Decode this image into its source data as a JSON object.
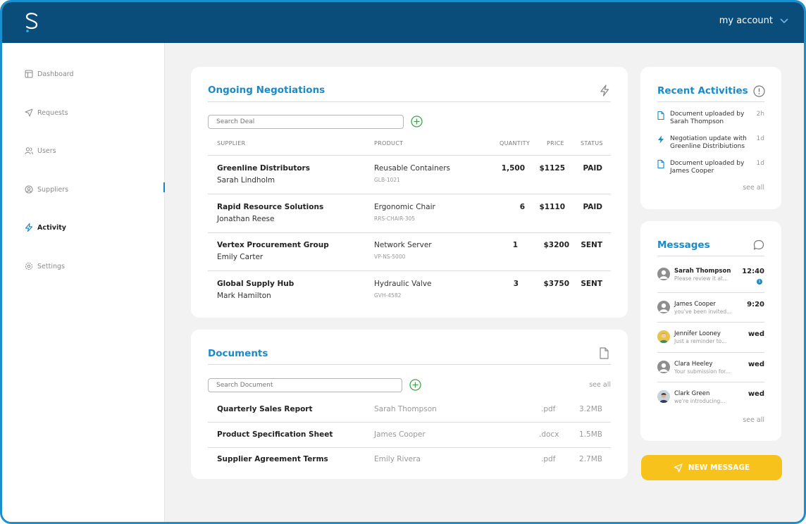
{
  "header": {
    "account_label": "my account"
  },
  "sidebar": {
    "items": [
      {
        "label": "Dashboard",
        "icon": "dashboard-icon"
      },
      {
        "label": "Requests",
        "icon": "send-icon"
      },
      {
        "label": "Users",
        "icon": "users-icon"
      },
      {
        "label": "Suppliers",
        "icon": "suppliers-icon"
      },
      {
        "label": "Activity",
        "icon": "lightning-icon"
      },
      {
        "label": "Settings",
        "icon": "gear-icon"
      }
    ],
    "active": "Activity"
  },
  "negotiations": {
    "title": "Ongoing Negotiations",
    "search_placeholder": "Search Deal",
    "columns": {
      "supplier": "SUPPLIER",
      "product": "PRODUCT",
      "quantity": "QUANTITY",
      "price": "PRICE",
      "status": "STATUS"
    },
    "rows": [
      {
        "supplier": "Greenline Distributors",
        "contact": "Sarah Lindholm",
        "product": "Reusable Containers",
        "code": "GLB-1021",
        "quantity": "1,500",
        "price": "$1125",
        "status": "PAID"
      },
      {
        "supplier": "Rapid Resource Solutions",
        "contact": "Jonathan Reese",
        "product": "Ergonomic Chair",
        "code": "RRS-CHAIR-305",
        "quantity": "6",
        "price": "$1110",
        "status": "PAID"
      },
      {
        "supplier": "Vertex Procurement Group",
        "contact": "Emily Carter",
        "product": "Network Server",
        "code": "VP-NS-5000",
        "quantity": "1",
        "price": "$3200",
        "status": "SENT"
      },
      {
        "supplier": "Global Supply Hub",
        "contact": "Mark Hamilton",
        "product": "Hydraulic Valve",
        "code": "GVH-4582",
        "quantity": "3",
        "price": "$3750",
        "status": "SENT"
      }
    ]
  },
  "documents": {
    "title": "Documents",
    "search_placeholder": "Search Document",
    "see_all": "see all",
    "rows": [
      {
        "name": "Quarterly Sales Report",
        "owner": "Sarah Thompson",
        "ext": ".pdf",
        "size": "3.2MB"
      },
      {
        "name": "Product Specification Sheet",
        "owner": "James Cooper",
        "ext": ".docx",
        "size": "1.5MB"
      },
      {
        "name": "Supplier Agreement Terms",
        "owner": "Emily Rivera",
        "ext": ".pdf",
        "size": "2.7MB"
      }
    ]
  },
  "activities": {
    "title": "Recent Activities",
    "see_all": "see all",
    "items": [
      {
        "text": "Document uploaded by Sarah Thompson",
        "time": "2h",
        "icon": "document-icon"
      },
      {
        "text": "Negotiation update with Greenline Distribiutions",
        "time": "1d",
        "icon": "lightning-icon"
      },
      {
        "text": "Document uploaded by James Cooper",
        "time": "1d",
        "icon": "document-icon"
      }
    ]
  },
  "messages": {
    "title": "Messages",
    "see_all": "see all",
    "items": [
      {
        "name": "Sarah Thompson",
        "preview": "Please review it at...",
        "time": "12:40",
        "unread": "1"
      },
      {
        "name": "James Cooper",
        "preview": "you've been invited...",
        "time": "9:20"
      },
      {
        "name": "Jennifer Looney",
        "preview": "Just a reminder to...",
        "time": "wed"
      },
      {
        "name": "Clara Heeley",
        "preview": "Your submission for...",
        "time": "wed"
      },
      {
        "name": "Clark Green",
        "preview": "we're introducing...",
        "time": "wed"
      }
    ]
  },
  "new_message_label": "NEW MESSAGE",
  "colors": {
    "header": "#0a4c7a",
    "accent": "#1a8ac8",
    "button": "#f7c21b",
    "plus": "#3aa845"
  }
}
